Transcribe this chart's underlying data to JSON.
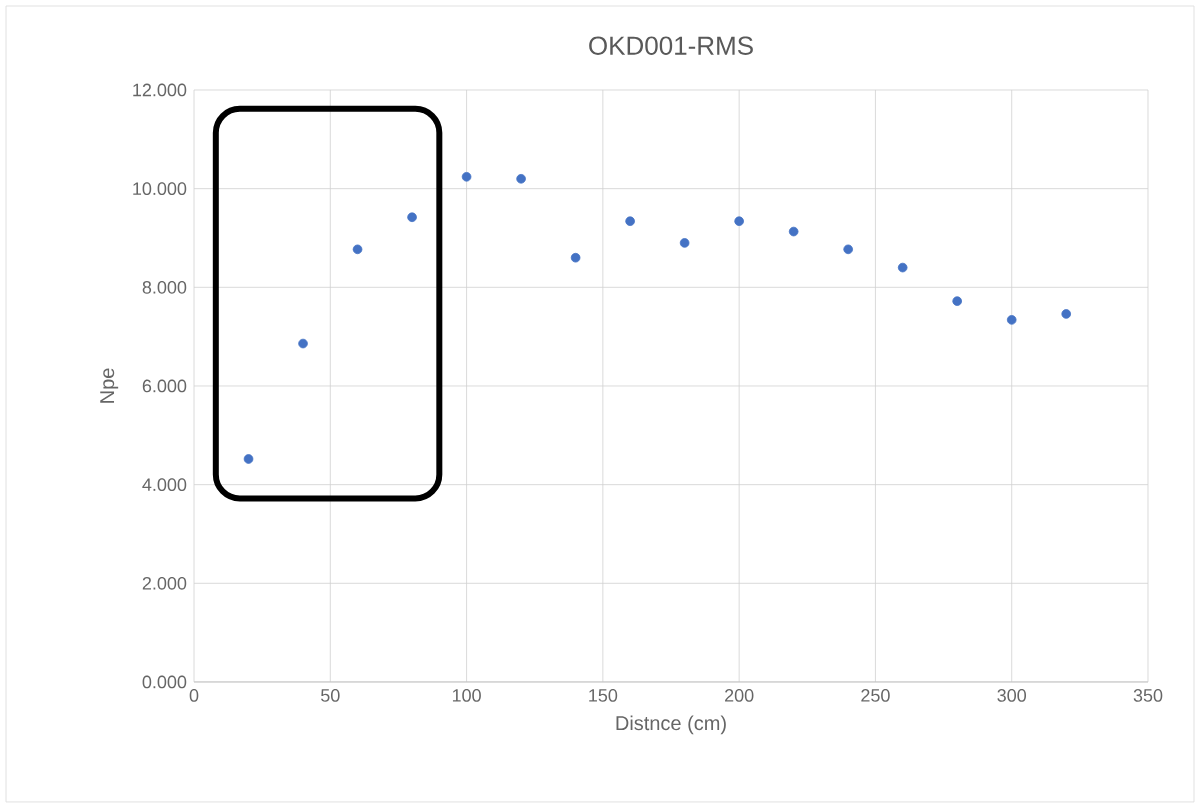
{
  "chart_data": {
    "type": "scatter",
    "title": "OKD001-RMS",
    "xlabel": "Distnce (cm)",
    "ylabel": "Npe",
    "x": [
      20,
      40,
      60,
      80,
      100,
      120,
      140,
      160,
      180,
      200,
      220,
      240,
      260,
      280,
      300,
      320
    ],
    "series": [
      {
        "color": "#4472c4",
        "values": [
          4.52,
          6.86,
          8.77,
          9.42,
          10.24,
          10.2,
          8.6,
          9.34,
          8.9,
          9.34,
          9.13,
          8.77,
          8.4,
          7.72,
          7.34,
          7.46
        ]
      }
    ],
    "xlim": [
      0,
      350
    ],
    "xticks": [
      0,
      50,
      100,
      150,
      200,
      250,
      300,
      350
    ],
    "ylim": [
      0,
      12
    ],
    "yticks": [
      {
        "value": 0,
        "label": "0.000"
      },
      {
        "value": 2,
        "label": "2.000"
      },
      {
        "value": 4,
        "label": "4.000"
      },
      {
        "value": 6,
        "label": "6.000"
      },
      {
        "value": 8,
        "label": "8.000"
      },
      {
        "value": 10,
        "label": "10.000"
      },
      {
        "value": 12,
        "label": "12.000"
      }
    ],
    "grid": true,
    "marker": "circle"
  }
}
